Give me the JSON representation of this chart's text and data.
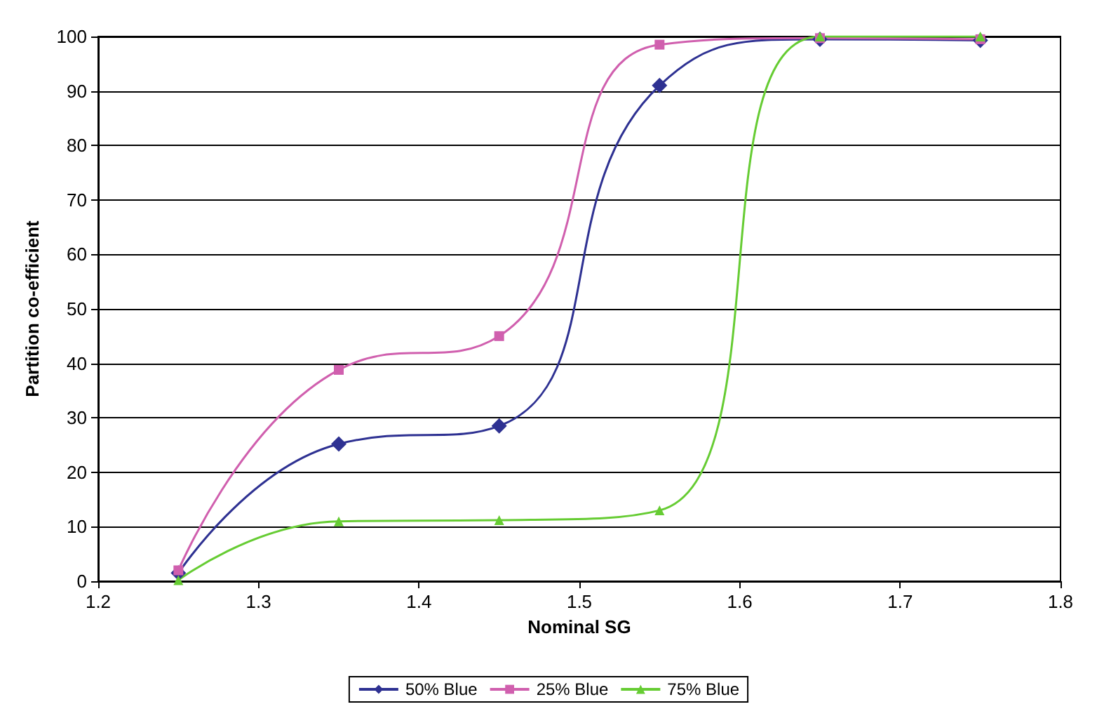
{
  "chart_data": {
    "type": "line",
    "xlabel": "Nominal SG",
    "ylabel": "Partition co-efficient",
    "x": [
      1.25,
      1.35,
      1.45,
      1.55,
      1.65,
      1.75
    ],
    "series": [
      {
        "name": "50% Blue",
        "color": "#2e3192",
        "marker": "diamond",
        "values": [
          1.5,
          25.2,
          28.5,
          91,
          99.5,
          99.3
        ]
      },
      {
        "name": "25% Blue",
        "color": "#d05fae",
        "marker": "square",
        "values": [
          2,
          38.8,
          45,
          98.5,
          99.7,
          99.5
        ]
      },
      {
        "name": "75% Blue",
        "color": "#66cc33",
        "marker": "triangle",
        "values": [
          0.2,
          11,
          11.2,
          13,
          100,
          100
        ]
      }
    ],
    "xlim": [
      1.2,
      1.8
    ],
    "xticks": [
      1.2,
      1.3,
      1.4,
      1.5,
      1.6,
      1.7,
      1.8
    ],
    "ylim": [
      0,
      100
    ],
    "yticks": [
      0,
      10,
      20,
      30,
      40,
      50,
      60,
      70,
      80,
      90,
      100
    ],
    "grid": "y",
    "legend": "bottom",
    "line_style": "solid"
  }
}
